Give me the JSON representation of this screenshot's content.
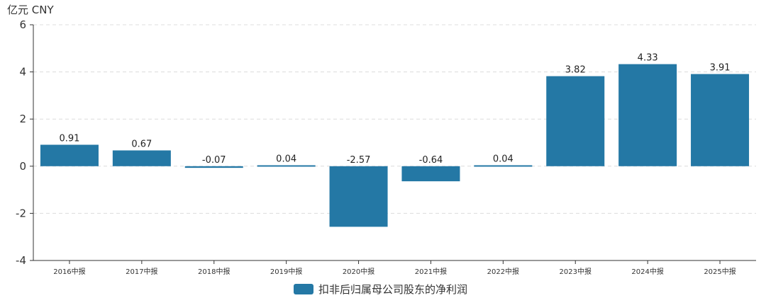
{
  "chart_data": {
    "type": "bar",
    "unit_label": "亿元  CNY",
    "categories": [
      "2016中报",
      "2017中报",
      "2018中报",
      "2019中报",
      "2020中报",
      "2021中报",
      "2022中报",
      "2023中报",
      "2024中报",
      "2025中报"
    ],
    "series": [
      {
        "name": "扣非后归属母公司股东的净利润",
        "color": "#2478a5",
        "values": [
          0.91,
          0.67,
          -0.07,
          0.04,
          -2.57,
          -0.64,
          0.04,
          3.82,
          4.33,
          3.91
        ],
        "labels": [
          "0.91",
          "0.67",
          "-0.07",
          "0.04",
          "-2.57",
          "-0.64",
          "0.04",
          "3.82",
          "4.33",
          "3.91"
        ]
      }
    ],
    "ylim": [
      -4,
      6
    ],
    "yticks": [
      -4,
      -2,
      0,
      2,
      4,
      6
    ],
    "grid": true,
    "legend_position": "bottom-center"
  }
}
